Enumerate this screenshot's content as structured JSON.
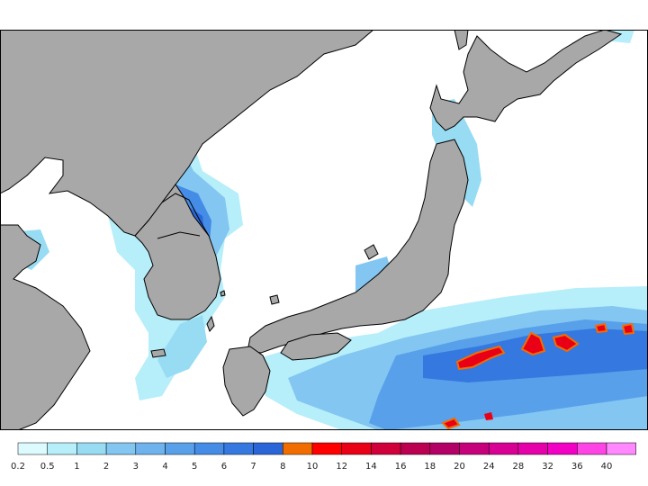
{
  "map": {
    "region": "Japan, Korea and East China Sea",
    "colors": {
      "land": "#a8a8a8",
      "sea": "#ffffff",
      "coast": "#000000",
      "border": "#000000"
    }
  },
  "legend": {
    "bins": [
      {
        "label": "0.2",
        "color": "#dcfbff"
      },
      {
        "label": "0.5",
        "color": "#b6eefa"
      },
      {
        "label": "1",
        "color": "#98dcf4"
      },
      {
        "label": "2",
        "color": "#82c6f1"
      },
      {
        "label": "3",
        "color": "#6eb2ee"
      },
      {
        "label": "4",
        "color": "#58a0ea"
      },
      {
        "label": "5",
        "color": "#448ce6"
      },
      {
        "label": "6",
        "color": "#3578e0"
      },
      {
        "label": "7",
        "color": "#2a66d8"
      },
      {
        "label": "8",
        "color": "#f26d00"
      },
      {
        "label": "10",
        "color": "#ff0000"
      },
      {
        "label": "12",
        "color": "#ea0016"
      },
      {
        "label": "14",
        "color": "#d0003a"
      },
      {
        "label": "16",
        "color": "#bb0052"
      },
      {
        "label": "18",
        "color": "#b30066"
      },
      {
        "label": "20",
        "color": "#c6007a"
      },
      {
        "label": "24",
        "color": "#d80094"
      },
      {
        "label": "28",
        "color": "#e600aa"
      },
      {
        "label": "32",
        "color": "#f200c4"
      },
      {
        "label": "36",
        "color": "#ff44e6"
      },
      {
        "label": "40",
        "color": "#ff88ff"
      }
    ]
  }
}
